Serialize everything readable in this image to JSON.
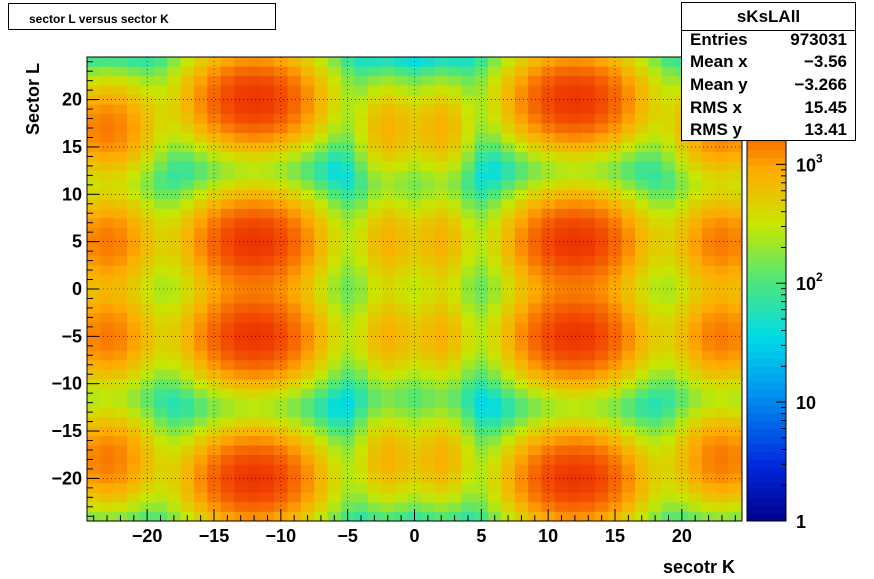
{
  "chart_data": {
    "type": "heatmap",
    "title": "sector L versus sector K",
    "xlabel": "secotr K",
    "ylabel": "Sector L",
    "xlim": [
      -24.5,
      24.5
    ],
    "ylim": [
      -24.5,
      24.5
    ],
    "xticks": [
      -20,
      -15,
      -10,
      -5,
      0,
      5,
      10,
      15,
      20
    ],
    "yticks": [
      -20,
      -15,
      -10,
      -5,
      0,
      5,
      10,
      15,
      20
    ],
    "z_scale": "log",
    "zlim": [
      1,
      8000
    ],
    "colorbar_ticks": [
      {
        "value": 1,
        "label": "1"
      },
      {
        "value": 10,
        "label": "10"
      },
      {
        "value": 100,
        "label": "10",
        "sup": "2"
      },
      {
        "value": 1000,
        "label": "10",
        "sup": "3"
      }
    ],
    "grid": true,
    "blobs": [
      {
        "x": -12,
        "y": 20,
        "peak": 3000
      },
      {
        "x": -12,
        "y": 5,
        "peak": 3000
      },
      {
        "x": -12,
        "y": -5,
        "peak": 3000
      },
      {
        "x": -12,
        "y": -20,
        "peak": 3000
      },
      {
        "x": 12,
        "y": 20,
        "peak": 3000
      },
      {
        "x": 12,
        "y": 5,
        "peak": 3000
      },
      {
        "x": 12,
        "y": -5,
        "peak": 3000
      },
      {
        "x": 12,
        "y": -20,
        "peak": 3000
      },
      {
        "x": -23,
        "y": 17,
        "peak": 1500
      },
      {
        "x": -23,
        "y": 5,
        "peak": 1500
      },
      {
        "x": -23,
        "y": -5,
        "peak": 1500
      },
      {
        "x": -23,
        "y": -18,
        "peak": 1500
      },
      {
        "x": 23,
        "y": 17,
        "peak": 1500
      },
      {
        "x": 23,
        "y": 5,
        "peak": 1500
      },
      {
        "x": 23,
        "y": -5,
        "peak": 1500
      },
      {
        "x": 23,
        "y": -18,
        "peak": 1500
      },
      {
        "x": -2,
        "y": 17,
        "peak": 800
      },
      {
        "x": -2,
        "y": 5,
        "peak": 800
      },
      {
        "x": -2,
        "y": -5,
        "peak": 800
      },
      {
        "x": -2,
        "y": -18,
        "peak": 800
      },
      {
        "x": 2,
        "y": 17,
        "peak": 800
      },
      {
        "x": 2,
        "y": 5,
        "peak": 800
      },
      {
        "x": 2,
        "y": -5,
        "peak": 800
      },
      {
        "x": 2,
        "y": -18,
        "peak": 800
      }
    ]
  },
  "stats": {
    "name": "sKsLAll",
    "rows": [
      {
        "key": "Entries",
        "value": "973031"
      },
      {
        "key": "Mean x",
        "value": "−3.56"
      },
      {
        "key": "Mean y",
        "value": "−3.266"
      },
      {
        "key": "RMS x",
        "value": "15.45"
      },
      {
        "key": "RMS y",
        "value": "13.41"
      }
    ]
  }
}
